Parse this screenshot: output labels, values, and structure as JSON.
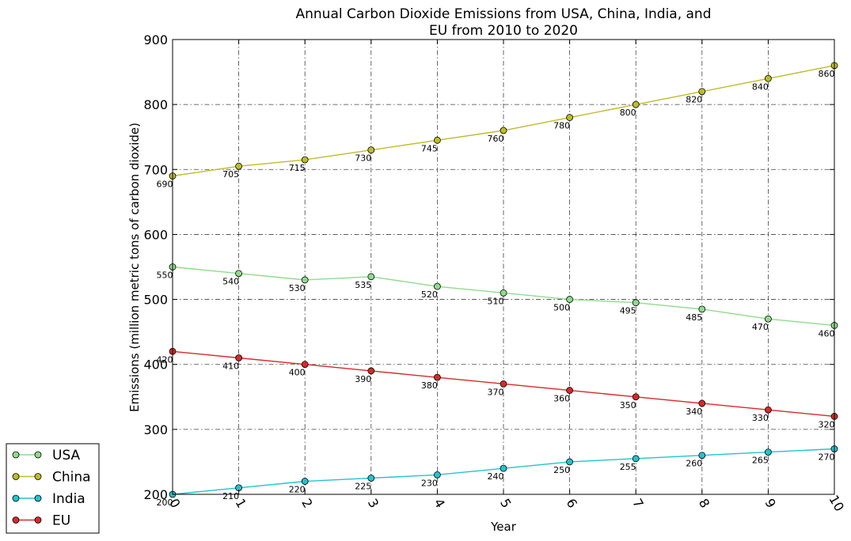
{
  "chart_data": {
    "type": "line",
    "title": "Annual Carbon Dioxide Emissions from USA, China, India, and EU from 2010 to 2020",
    "title_lines": [
      "Annual Carbon Dioxide Emissions from USA, China, India, and",
      "EU from 2010 to 2020"
    ],
    "xlabel": "Year",
    "ylabel": "Emissions (million metric tons of carbon dioxide)",
    "x": [
      0,
      1,
      2,
      3,
      4,
      5,
      6,
      7,
      8,
      9,
      10
    ],
    "xlim": [
      0,
      10
    ],
    "ylim": [
      200,
      900
    ],
    "xticks": [
      "0",
      "1",
      "2",
      "3",
      "4",
      "5",
      "6",
      "7",
      "8",
      "9",
      "10"
    ],
    "yticks": [
      "200",
      "300",
      "400",
      "500",
      "600",
      "700",
      "800",
      "900"
    ],
    "grid": true,
    "legend_position": "outside-bottom-left",
    "series": [
      {
        "name": "USA",
        "color": "#8fdc8a",
        "values": [
          550,
          540,
          530,
          535,
          520,
          510,
          500,
          495,
          485,
          470,
          460
        ]
      },
      {
        "name": "China",
        "color": "#bdbd2a",
        "values": [
          690,
          705,
          715,
          730,
          745,
          760,
          780,
          800,
          820,
          840,
          860
        ]
      },
      {
        "name": "India",
        "color": "#24c3cd",
        "values": [
          200,
          210,
          220,
          225,
          230,
          240,
          250,
          255,
          260,
          265,
          270
        ]
      },
      {
        "name": "EU",
        "color": "#d62a2a",
        "values": [
          420,
          410,
          400,
          390,
          380,
          370,
          360,
          350,
          340,
          330,
          320
        ]
      }
    ]
  }
}
